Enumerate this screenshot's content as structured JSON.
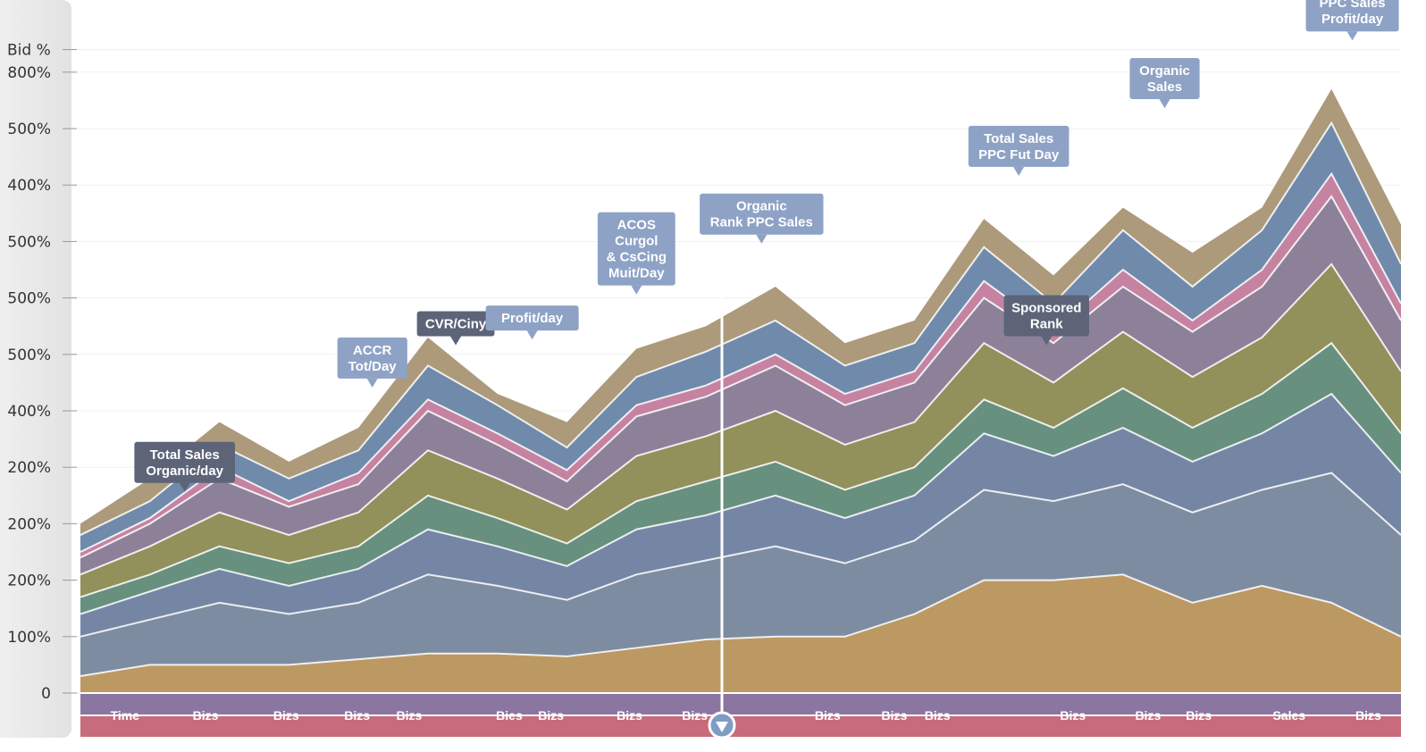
{
  "chart_data": {
    "type": "area",
    "stacked": true,
    "title": "",
    "ylabel": "Bid %",
    "xlabel": "",
    "ylim": [
      0,
      12.3
    ],
    "y_tick_labels": [
      "0",
      "100%",
      "200%",
      "200%",
      "200%",
      "400%",
      "500%",
      "500%",
      "500%",
      "400%",
      "500%",
      "800%",
      "Bid %"
    ],
    "x_tick_labels": [
      {
        "label": "Time",
        "x": 0.64
      },
      {
        "label": "Bizs",
        "x": 1.8
      },
      {
        "label": "Bizs",
        "x": 2.96
      },
      {
        "label": "Bizs",
        "x": 3.98
      },
      {
        "label": "Bizs",
        "x": 4.73
      },
      {
        "label": "Bies",
        "x": 6.17
      },
      {
        "label": "Bizs",
        "x": 6.77
      },
      {
        "label": "Bizs",
        "x": 7.9
      },
      {
        "label": "Bizs",
        "x": 8.84
      },
      {
        "label": "Bizs",
        "x": 10.75
      },
      {
        "label": "Bizs",
        "x": 11.71
      },
      {
        "label": "Bizs",
        "x": 12.33
      },
      {
        "label": "Bizs",
        "x": 14.28
      },
      {
        "label": "Bizs",
        "x": 15.36
      },
      {
        "label": "Bizs",
        "x": 16.09
      },
      {
        "label": "Sales",
        "x": 17.39
      },
      {
        "label": "Bizs",
        "x": 18.53
      }
    ],
    "x": [
      0,
      1,
      2,
      3,
      4,
      5,
      6,
      7,
      8,
      9,
      10,
      11,
      12,
      13,
      14,
      15,
      16,
      17,
      18,
      19
    ],
    "series": [
      {
        "color": "#b8945a",
        "values": [
          0.3,
          0.5,
          0.5,
          0.5,
          0.6,
          0.7,
          0.7,
          0.65,
          0.8,
          0.95,
          1.0,
          1.0,
          1.4,
          2.0,
          2.0,
          2.1,
          1.6,
          1.9,
          1.6,
          1.0
        ]
      },
      {
        "color": "#76869c",
        "values": [
          0.7,
          0.8,
          1.1,
          0.9,
          1.0,
          1.4,
          1.2,
          1.0,
          1.3,
          1.4,
          1.6,
          1.3,
          1.3,
          1.6,
          1.4,
          1.6,
          1.6,
          1.7,
          2.3,
          1.8
        ]
      },
      {
        "color": "#6e80a0",
        "values": [
          0.4,
          0.5,
          0.6,
          0.5,
          0.6,
          0.8,
          0.7,
          0.6,
          0.8,
          0.8,
          0.9,
          0.8,
          0.8,
          1.0,
          0.8,
          1.0,
          0.9,
          1.0,
          1.4,
          1.1
        ]
      },
      {
        "color": "#5f8a78",
        "values": [
          0.3,
          0.3,
          0.4,
          0.4,
          0.4,
          0.6,
          0.5,
          0.4,
          0.5,
          0.6,
          0.6,
          0.5,
          0.5,
          0.6,
          0.5,
          0.7,
          0.6,
          0.7,
          0.9,
          0.7
        ]
      },
      {
        "color": "#8c8a52",
        "values": [
          0.4,
          0.5,
          0.6,
          0.5,
          0.6,
          0.8,
          0.7,
          0.6,
          0.8,
          0.8,
          0.9,
          0.8,
          0.8,
          1.0,
          0.8,
          1.0,
          0.9,
          1.0,
          1.4,
          1.1
        ]
      },
      {
        "color": "#877a95",
        "values": [
          0.3,
          0.4,
          0.6,
          0.5,
          0.5,
          0.7,
          0.6,
          0.5,
          0.7,
          0.7,
          0.8,
          0.7,
          0.7,
          0.8,
          0.7,
          0.8,
          0.8,
          0.9,
          1.2,
          0.9
        ]
      },
      {
        "color": "#c27c9c",
        "values": [
          0.1,
          0.1,
          0.2,
          0.1,
          0.2,
          0.2,
          0.2,
          0.2,
          0.2,
          0.2,
          0.2,
          0.2,
          0.2,
          0.3,
          0.2,
          0.3,
          0.2,
          0.3,
          0.4,
          0.3
        ]
      },
      {
        "color": "#6884a6",
        "values": [
          0.3,
          0.3,
          0.4,
          0.4,
          0.4,
          0.6,
          0.5,
          0.4,
          0.5,
          0.6,
          0.6,
          0.5,
          0.5,
          0.6,
          0.5,
          0.7,
          0.6,
          0.7,
          0.9,
          0.7
        ]
      },
      {
        "color": "#a89574",
        "values": [
          0.2,
          0.4,
          0.4,
          0.3,
          0.4,
          0.5,
          0.2,
          0.45,
          0.5,
          0.45,
          0.6,
          0.4,
          0.4,
          0.5,
          0.5,
          0.4,
          0.6,
          0.4,
          0.6,
          0.7
        ]
      }
    ],
    "annotations": [
      {
        "lines": [
          "Total Sales",
          "Organic/day"
        ],
        "x": 1.5,
        "y": 3.5,
        "style": "dark"
      },
      {
        "lines": [
          "ACCR",
          "Tot/Day"
        ],
        "x": 4.2,
        "y": 5.35,
        "style": "light"
      },
      {
        "lines": [
          "CVR/Ciny"
        ],
        "x": 5.4,
        "y": 6.1,
        "style": "dark"
      },
      {
        "lines": [
          "Profit/day"
        ],
        "x": 6.5,
        "y": 6.2,
        "style": "light"
      },
      {
        "lines": [
          "ACOS",
          "Curgol",
          "& CsCing",
          "Muit/Day"
        ],
        "x": 8.0,
        "y": 7.0,
        "style": "light"
      },
      {
        "lines": [
          "Organic",
          "Rank PPC Sales"
        ],
        "x": 9.8,
        "y": 7.9,
        "style": "light"
      },
      {
        "lines": [
          "Total Sales",
          "PPC Fut Day"
        ],
        "x": 13.5,
        "y": 9.1,
        "style": "light"
      },
      {
        "lines": [
          "Sponsored",
          "Rank"
        ],
        "x": 13.9,
        "y": 6.1,
        "style": "dark"
      },
      {
        "lines": [
          "Organic",
          "Sales"
        ],
        "x": 15.6,
        "y": 10.3,
        "style": "light"
      },
      {
        "lines": [
          "PPC Sales",
          "Profit/day"
        ],
        "x": 18.3,
        "y": 11.5,
        "style": "light"
      }
    ],
    "marker_x": 9.23,
    "bottom_bands": [
      "#8a76a0",
      "#c86b7a"
    ],
    "grid": true,
    "legend": "none"
  }
}
